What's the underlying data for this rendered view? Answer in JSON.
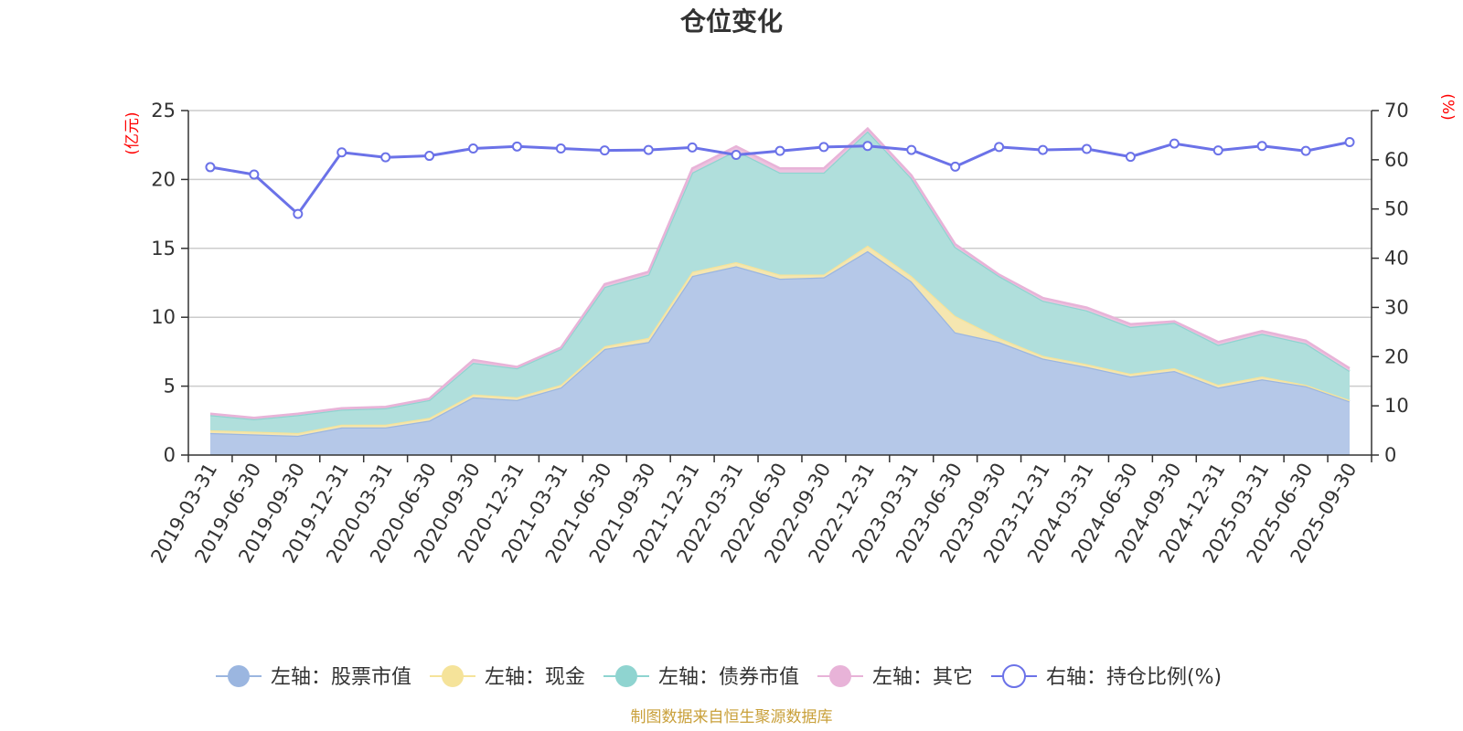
{
  "chart_data": {
    "type": "area",
    "title": "仓位变化",
    "source_note": "制图数据来自恒生聚源数据库",
    "left_axis": {
      "unit": "(亿元)",
      "ylim": [
        0,
        25
      ],
      "ticks": [
        0,
        5,
        10,
        15,
        20,
        25
      ]
    },
    "right_axis": {
      "unit": "(%)",
      "ylim": [
        0,
        70
      ],
      "ticks": [
        0,
        10,
        20,
        30,
        40,
        50,
        60,
        70
      ]
    },
    "categories": [
      "2019-03-31",
      "2019-06-30",
      "2019-09-30",
      "2019-12-31",
      "2020-03-31",
      "2020-06-30",
      "2020-09-30",
      "2020-12-31",
      "2021-03-31",
      "2021-06-30",
      "2021-09-30",
      "2021-12-31",
      "2022-03-31",
      "2022-06-30",
      "2022-09-30",
      "2022-12-31",
      "2023-03-31",
      "2023-06-30",
      "2023-09-30",
      "2023-12-31",
      "2024-03-31",
      "2024-06-30",
      "2024-09-30",
      "2024-12-31",
      "2025-03-31",
      "2025-06-30",
      "2025-09-30"
    ],
    "series": [
      {
        "name": "左轴：股票市值",
        "axis": "left",
        "kind": "stack",
        "color": "#9bb6e0",
        "values": [
          1.6,
          1.5,
          1.4,
          2.0,
          2.0,
          2.5,
          4.2,
          4.0,
          4.9,
          7.7,
          8.2,
          13.0,
          13.7,
          12.8,
          12.9,
          14.8,
          12.6,
          8.9,
          8.2,
          7.0,
          6.4,
          5.7,
          6.1,
          4.9,
          5.5,
          5.0,
          3.9
        ]
      },
      {
        "name": "左轴：现金",
        "axis": "left",
        "kind": "stack",
        "color": "#f5e39a",
        "values": [
          0.2,
          0.2,
          0.2,
          0.2,
          0.2,
          0.2,
          0.2,
          0.2,
          0.2,
          0.2,
          0.3,
          0.3,
          0.3,
          0.3,
          0.2,
          0.4,
          0.4,
          1.2,
          0.3,
          0.2,
          0.2,
          0.2,
          0.2,
          0.2,
          0.2,
          0.1,
          0.1
        ]
      },
      {
        "name": "左轴：债券市值",
        "axis": "left",
        "kind": "stack",
        "color": "#8fd4d0",
        "values": [
          1.1,
          0.9,
          1.3,
          1.1,
          1.2,
          1.3,
          2.3,
          2.1,
          2.6,
          4.3,
          4.6,
          7.2,
          8.1,
          7.4,
          7.4,
          8.3,
          7.1,
          5.0,
          4.5,
          4.0,
          3.9,
          3.4,
          3.3,
          2.9,
          3.1,
          3.0,
          2.1
        ]
      },
      {
        "name": "左轴：其它",
        "axis": "left",
        "kind": "stack",
        "color": "#e8b3d8",
        "values": [
          0.1,
          0.1,
          0.1,
          0.1,
          0.1,
          0.1,
          0.2,
          0.1,
          0.1,
          0.2,
          0.2,
          0.3,
          0.3,
          0.3,
          0.3,
          0.2,
          0.2,
          0.2,
          0.1,
          0.2,
          0.2,
          0.2,
          0.1,
          0.2,
          0.2,
          0.2,
          0.2
        ]
      },
      {
        "name": "右轴：持仓比例(%)",
        "axis": "right",
        "kind": "line",
        "color": "#6b72e8",
        "values": [
          58.5,
          57.0,
          49.0,
          61.5,
          60.5,
          60.8,
          62.3,
          62.7,
          62.3,
          61.9,
          62.0,
          62.5,
          61.0,
          61.8,
          62.6,
          62.8,
          62.0,
          58.6,
          62.6,
          62.0,
          62.2,
          60.6,
          63.3,
          61.9,
          62.8,
          61.8,
          63.6
        ]
      }
    ]
  }
}
